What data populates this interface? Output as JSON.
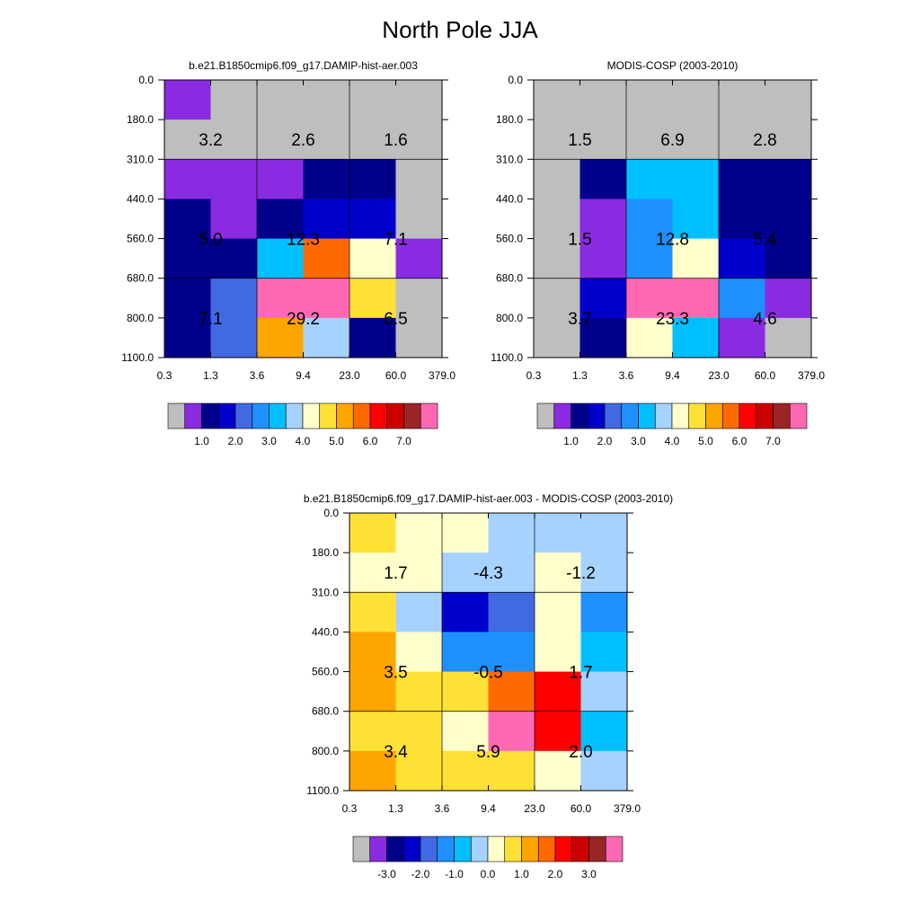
{
  "title": "North Pole JJA",
  "x_tick_labels": [
    "0.3",
    "1.3",
    "3.6",
    "9.4",
    "23.0",
    "60.0",
    "379.0"
  ],
  "y_tick_labels": [
    "0.0",
    "180.0",
    "310.0",
    "440.0",
    "560.0",
    "680.0",
    "800.0",
    "1100.0"
  ],
  "colors": {
    "gray": "#bebebe",
    "violet": "#8a2be2",
    "navy": "#00008b",
    "mediumblue": "#0000cd",
    "royalblue": "#4169e1",
    "dodgerblue": "#1e90ff",
    "deepskyblue": "#00bfff",
    "lightskyblue": "#a6d2ff",
    "lightyellow": "#ffffcc",
    "gold": "#ffe135",
    "orange": "#ffa500",
    "darkorange": "#ff6a00",
    "red": "#ff0000",
    "crimson": "#cd0000",
    "brown": "#9b2525",
    "pink": "#ff69b4"
  },
  "colorbar_abs": {
    "colors": [
      "gray",
      "violet",
      "navy",
      "mediumblue",
      "royalblue",
      "dodgerblue",
      "deepskyblue",
      "lightskyblue",
      "lightyellow",
      "gold",
      "orange",
      "darkorange",
      "red",
      "crimson",
      "brown",
      "pink"
    ],
    "labels": [
      "1.0",
      "2.0",
      "3.0",
      "4.0",
      "5.0",
      "6.0",
      "7.0"
    ],
    "label_boundaries": [
      2,
      4,
      6,
      8,
      10,
      12,
      14
    ]
  },
  "colorbar_diff": {
    "colors": [
      "gray",
      "violet",
      "navy",
      "mediumblue",
      "royalblue",
      "dodgerblue",
      "deepskyblue",
      "lightskyblue",
      "lightyellow",
      "gold",
      "orange",
      "darkorange",
      "red",
      "crimson",
      "brown",
      "pink"
    ],
    "labels": [
      "-3.0",
      "-2.0",
      "-1.0",
      "0.0",
      "1.0",
      "2.0",
      "3.0"
    ],
    "label_boundaries": [
      2,
      4,
      6,
      8,
      10,
      12,
      14
    ]
  },
  "chart_data": [
    {
      "type": "heatmap",
      "title": "b.e21.B1850cmip6.f09_g17.DAMIP-hist-aer.003",
      "xlabel": "",
      "ylabel": "",
      "grid_colors": [
        [
          "violet",
          "gray",
          "gray",
          "gray",
          "gray",
          "gray"
        ],
        [
          "gray",
          "gray",
          "gray",
          "gray",
          "gray",
          "gray"
        ],
        [
          "violet",
          "violet",
          "violet",
          "navy",
          "navy",
          "gray"
        ],
        [
          "navy",
          "violet",
          "navy",
          "mediumblue",
          "mediumblue",
          "gray"
        ],
        [
          "navy",
          "navy",
          "deepskyblue",
          "darkorange",
          "lightyellow",
          "violet"
        ],
        [
          "navy",
          "royalblue",
          "pink",
          "pink",
          "gold",
          "gray"
        ],
        [
          "navy",
          "royalblue",
          "orange",
          "lightskyblue",
          "navy",
          "gray"
        ]
      ],
      "cell_values": [
        [
          "3.2",
          "2.6",
          "1.6"
        ],
        [
          "5.0",
          "12.3",
          "7.1"
        ],
        [
          "7.1",
          "29.2",
          "6.5"
        ]
      ]
    },
    {
      "type": "heatmap",
      "title": "MODIS-COSP (2003-2010)",
      "xlabel": "",
      "ylabel": "",
      "grid_colors": [
        [
          "gray",
          "gray",
          "gray",
          "gray",
          "gray",
          "gray"
        ],
        [
          "gray",
          "gray",
          "gray",
          "gray",
          "gray",
          "gray"
        ],
        [
          "gray",
          "navy",
          "deepskyblue",
          "deepskyblue",
          "navy",
          "navy"
        ],
        [
          "gray",
          "violet",
          "dodgerblue",
          "deepskyblue",
          "navy",
          "navy"
        ],
        [
          "gray",
          "violet",
          "dodgerblue",
          "lightyellow",
          "mediumblue",
          "navy"
        ],
        [
          "gray",
          "mediumblue",
          "pink",
          "pink",
          "dodgerblue",
          "violet"
        ],
        [
          "gray",
          "navy",
          "lightyellow",
          "deepskyblue",
          "violet",
          "gray"
        ]
      ],
      "cell_values": [
        [
          "1.5",
          "6.9",
          "2.8"
        ],
        [
          "1.5",
          "12.8",
          "5.4"
        ],
        [
          "3.7",
          "23.3",
          "4.6"
        ]
      ]
    },
    {
      "type": "heatmap",
      "title": "b.e21.B1850cmip6.f09_g17.DAMIP-hist-aer.003 - MODIS-COSP (2003-2010)",
      "xlabel": "",
      "ylabel": "",
      "grid_colors": [
        [
          "gold",
          "lightyellow",
          "lightyellow",
          "lightskyblue",
          "lightskyblue",
          "lightskyblue"
        ],
        [
          "lightyellow",
          "lightyellow",
          "lightskyblue",
          "lightskyblue",
          "lightyellow",
          "lightskyblue"
        ],
        [
          "gold",
          "lightskyblue",
          "mediumblue",
          "royalblue",
          "lightyellow",
          "dodgerblue"
        ],
        [
          "orange",
          "lightyellow",
          "dodgerblue",
          "dodgerblue",
          "lightyellow",
          "deepskyblue"
        ],
        [
          "orange",
          "gold",
          "gold",
          "darkorange",
          "red",
          "lightskyblue"
        ],
        [
          "gold",
          "gold",
          "lightyellow",
          "pink",
          "red",
          "deepskyblue"
        ],
        [
          "orange",
          "gold",
          "gold",
          "gold",
          "lightyellow",
          "lightskyblue"
        ]
      ],
      "cell_values": [
        [
          "1.7",
          "-4.3",
          "-1.2"
        ],
        [
          "3.5",
          "-0.5",
          "1.7"
        ],
        [
          "3.4",
          "5.9",
          "2.0"
        ]
      ]
    }
  ]
}
